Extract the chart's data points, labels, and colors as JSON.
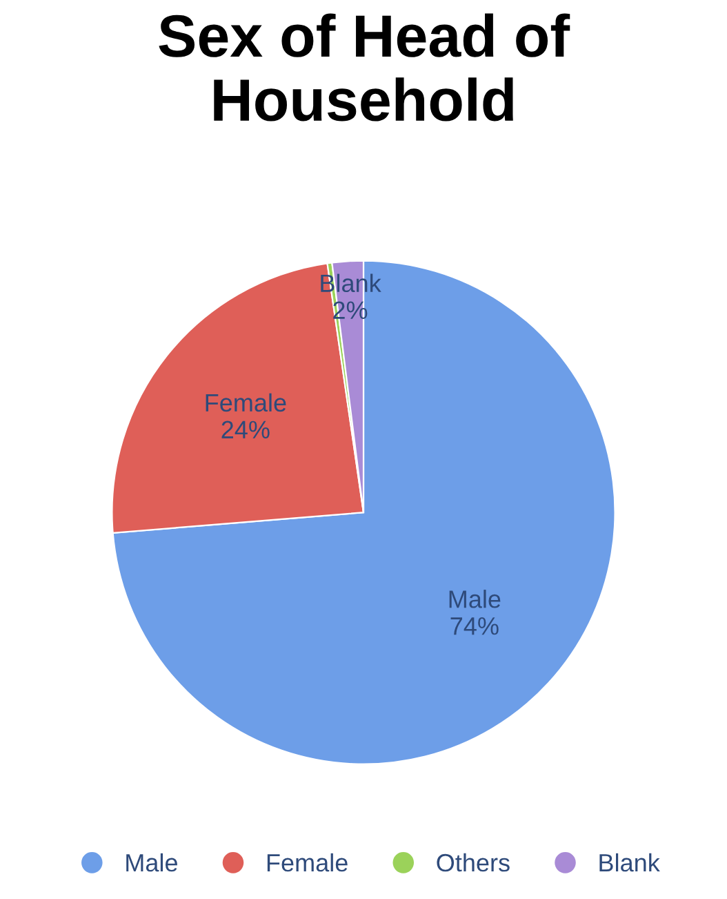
{
  "chart_data": {
    "type": "pie",
    "title": "Sex of Head of Household",
    "categories": [
      "Male",
      "Female",
      "Others",
      "Blank"
    ],
    "values": [
      73.7,
      24,
      0.3,
      2
    ],
    "value_labels": [
      "74%",
      "24%",
      null,
      "2%"
    ],
    "colors": [
      "#6d9ee8",
      "#df5f58",
      "#9bd25a",
      "#a98bd6"
    ],
    "legend": "bottom"
  }
}
